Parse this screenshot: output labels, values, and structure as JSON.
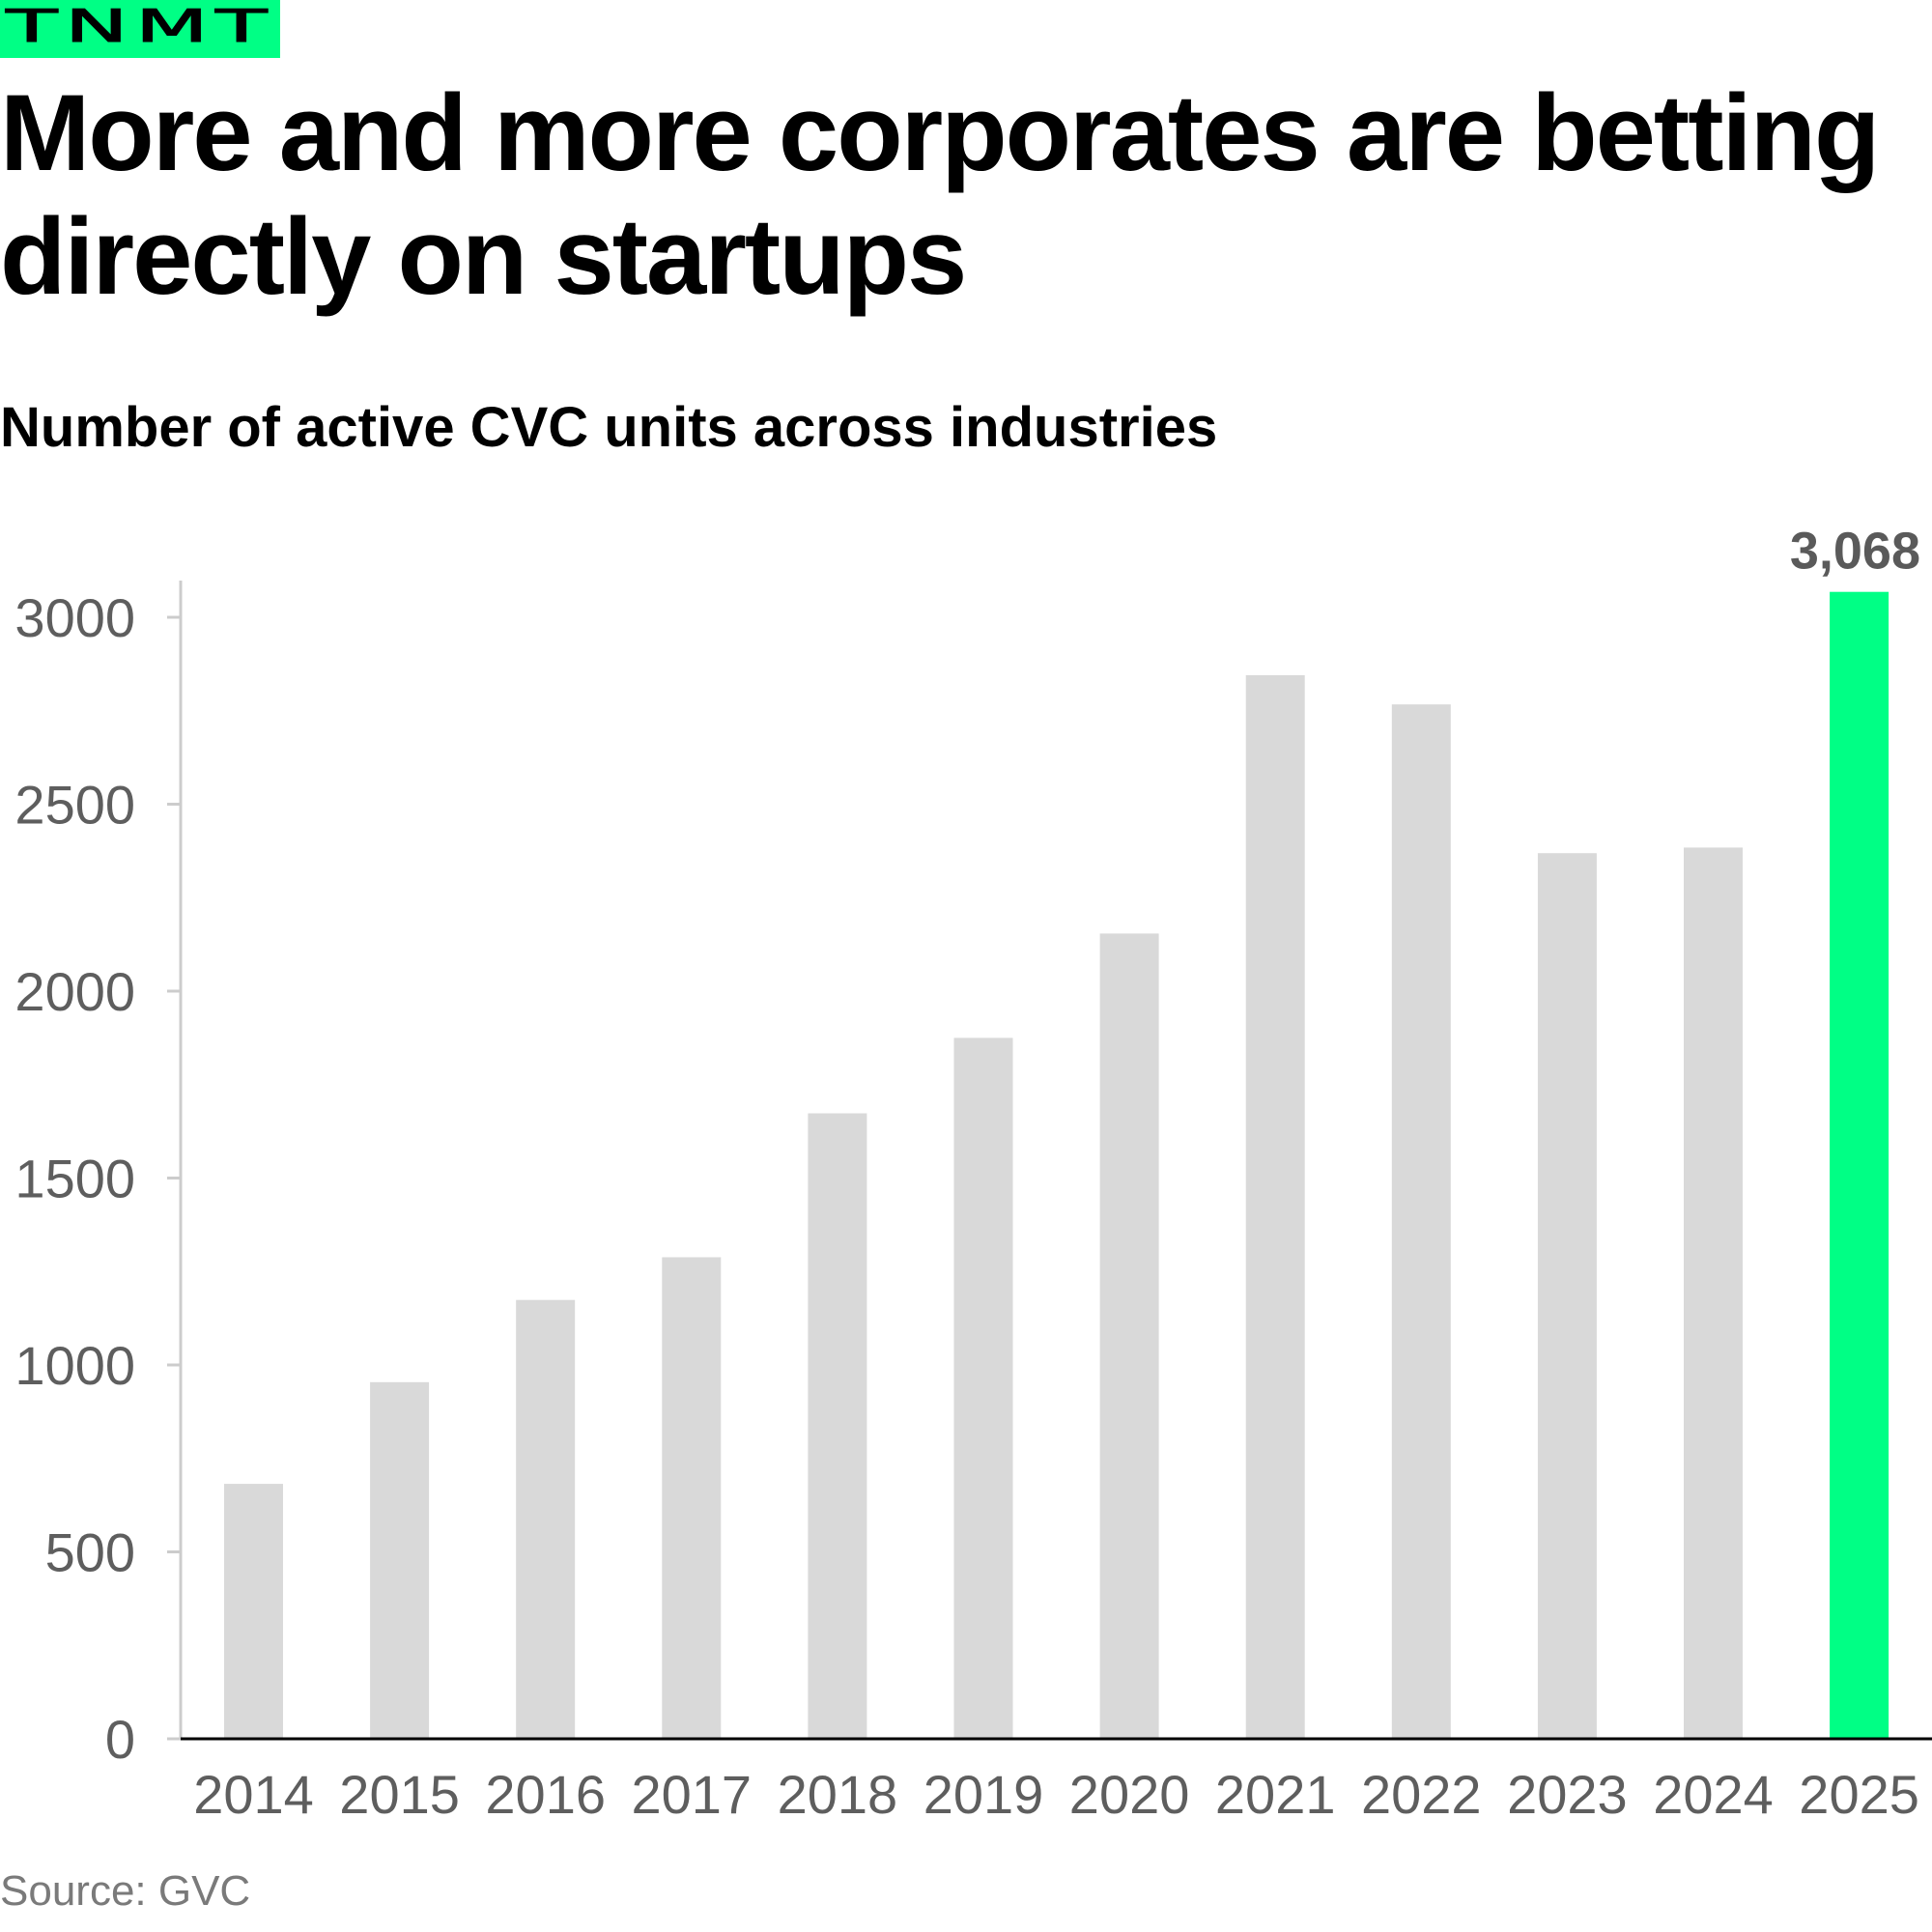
{
  "brand": {
    "logo_text": "TNMT",
    "color": "#00ff85"
  },
  "header": {
    "title": "More and more corporates are betting directly on startups",
    "subtitle": "Number of active CVC units across industries"
  },
  "footer": {
    "source": "Source: GVC"
  },
  "colors": {
    "bar_default": "#d9d9d9",
    "bar_highlight": "#00ff85",
    "axis": "#cccccc",
    "baseline": "#000000",
    "tick_text": "#5e5e5e"
  },
  "chart_data": {
    "type": "bar",
    "title": "More and more corporates are betting directly on startups",
    "subtitle": "Number of active CVC units across industries",
    "xlabel": "",
    "ylabel": "",
    "categories": [
      "2014",
      "2015",
      "2016",
      "2017",
      "2018",
      "2019",
      "2020",
      "2021",
      "2022",
      "2023",
      "2024",
      "2025"
    ],
    "values": [
      682,
      954,
      1174,
      1288,
      1673,
      1875,
      2154,
      2845,
      2767,
      2369,
      2384,
      3068
    ],
    "highlight_index": 11,
    "data_labels": [
      {
        "index": 11,
        "text": "3,068"
      }
    ],
    "ylim": [
      0,
      3000
    ],
    "yticks": [
      0,
      500,
      1000,
      1500,
      2000,
      2500,
      3000
    ],
    "ytick_labels": [
      "0",
      "500",
      "1000",
      "1500",
      "2000",
      "2500",
      "3000"
    ],
    "grid": false,
    "legend": "none",
    "source": "Source: GVC"
  }
}
